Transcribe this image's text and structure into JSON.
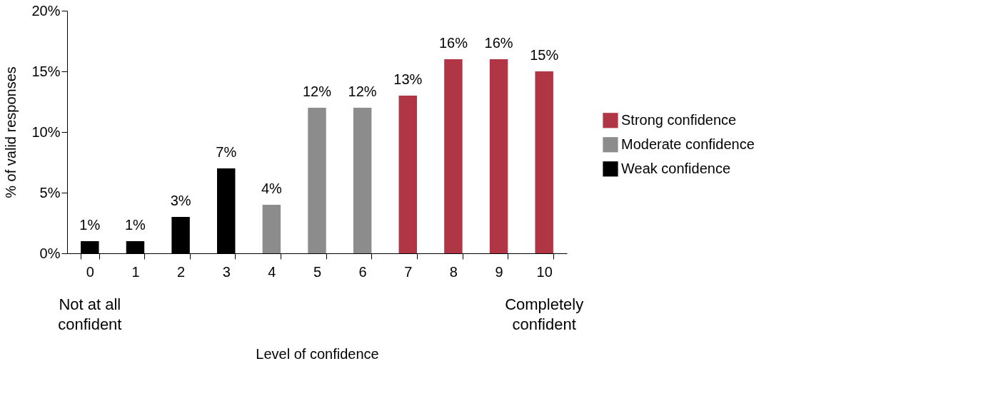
{
  "chart_data": {
    "type": "bar",
    "xlabel": "Level of confidence",
    "ylabel": "% of valid responses",
    "categories": [
      "0",
      "1",
      "2",
      "3",
      "4",
      "5",
      "6",
      "7",
      "8",
      "9",
      "10"
    ],
    "series": [
      {
        "name": "Strong confidence",
        "color": "#b03545",
        "values": [
          null,
          null,
          null,
          null,
          null,
          null,
          null,
          13,
          16,
          16,
          15
        ],
        "value_labels": [
          null,
          null,
          null,
          null,
          null,
          null,
          null,
          "13%",
          "16%",
          "16%",
          "15%"
        ]
      },
      {
        "name": "Moderate confidence",
        "color": "#8c8c8c",
        "values": [
          null,
          null,
          null,
          null,
          4,
          12,
          12,
          null,
          null,
          null,
          null
        ],
        "value_labels": [
          null,
          null,
          null,
          null,
          "4%",
          "12%",
          "12%",
          null,
          null,
          null,
          null
        ]
      },
      {
        "name": "Weak confidence",
        "color": "#000000",
        "values": [
          1,
          1,
          3,
          7,
          null,
          null,
          null,
          null,
          null,
          null,
          null
        ],
        "value_labels": [
          "1%",
          "1%",
          "3%",
          "7%",
          null,
          null,
          null,
          null,
          null,
          null,
          null
        ]
      }
    ],
    "ylim": [
      0,
      20
    ],
    "yticks": [
      {
        "value": 0,
        "label": "0%"
      },
      {
        "value": 5,
        "label": "5%"
      },
      {
        "value": 10,
        "label": "10%"
      },
      {
        "value": 15,
        "label": "15%"
      },
      {
        "value": 20,
        "label": "20%"
      }
    ],
    "annotations": [
      "Not at all\nconfident",
      "Completely\nconfident"
    ],
    "legend": "right",
    "grid": false
  }
}
